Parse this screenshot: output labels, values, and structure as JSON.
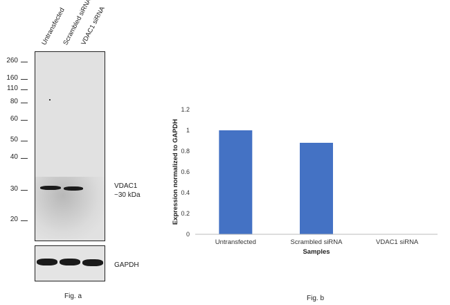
{
  "blot": {
    "lanes": [
      "Untransfected",
      "Scrambled siRNA",
      "VDAC1 siRNA"
    ],
    "markers": [
      "260",
      "160",
      "110",
      "80",
      "60",
      "50",
      "40",
      "30",
      "20"
    ],
    "band_label_line1": "VDAC1",
    "band_label_line2": "~30 kDa",
    "loading_control_label": "GAPDH",
    "caption": "Fig. a"
  },
  "chart_data": {
    "type": "bar",
    "categories": [
      "Untransfected",
      "Scrambled siRNA",
      "VDAC1 siRNA"
    ],
    "values": [
      1.0,
      0.88,
      0
    ],
    "ylabel": "Expression  normalized to GAPDH",
    "xlabel": "Samples",
    "ylim": [
      0,
      1.2
    ],
    "yticks": [
      "0",
      "0.2",
      "0.4",
      "0.6",
      "0.8",
      "1",
      "1.2"
    ],
    "bar_color": "#4472c4",
    "grid": false,
    "caption": "Fig. b"
  }
}
